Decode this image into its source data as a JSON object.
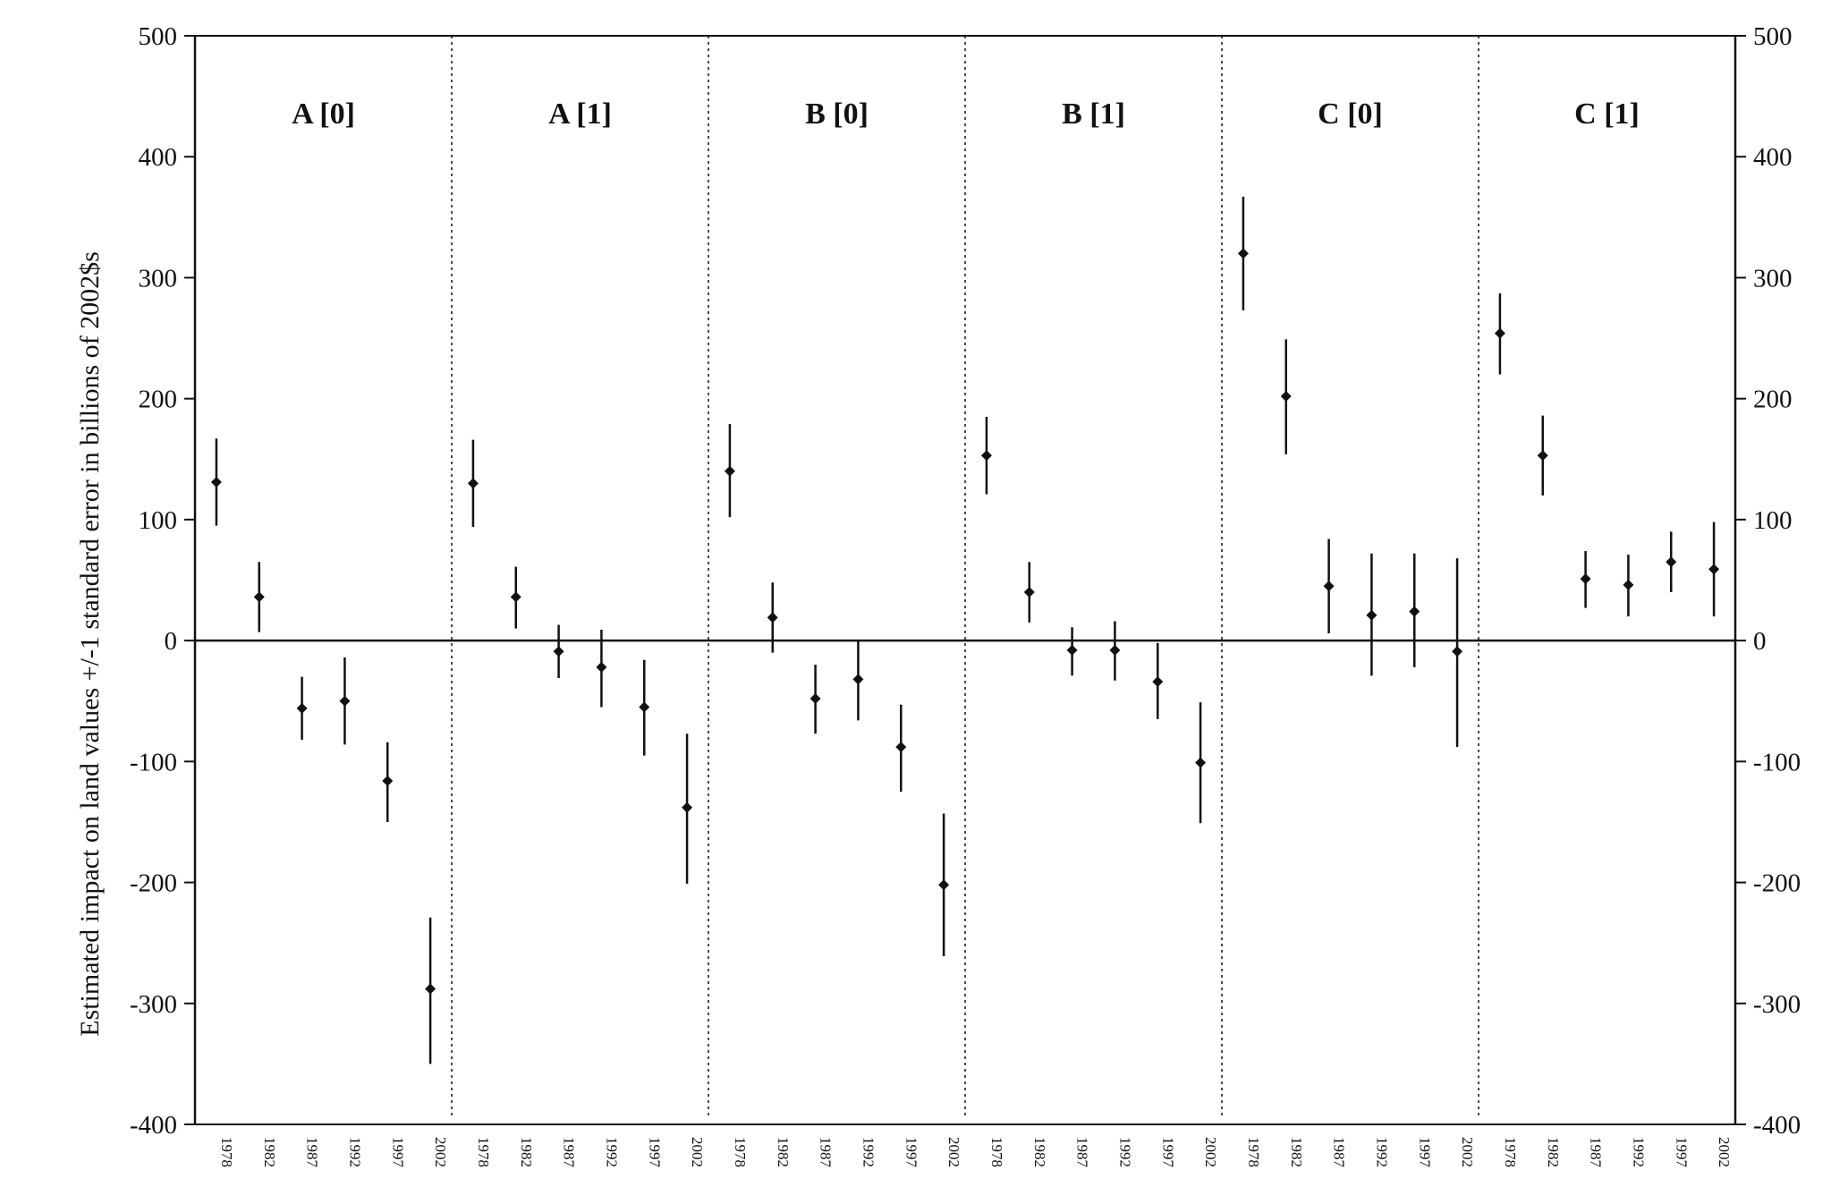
{
  "chart_data": {
    "type": "scatter",
    "ylabel": "Estimated impact on land values +/-1 standard error in billions of 2002$s",
    "ylim": [
      -400,
      500
    ],
    "yticks": [
      500,
      400,
      300,
      200,
      100,
      0,
      -100,
      -200,
      -300,
      -400
    ],
    "ytick_labels": [
      "500",
      "400",
      "300",
      "200",
      "100",
      "0",
      "-100",
      "-200",
      "-300",
      "-400"
    ],
    "years": [
      "1978",
      "1982",
      "1987",
      "1992",
      "1997",
      "2002"
    ],
    "grid": false,
    "error_bars": "+/-1 standard error",
    "panels": [
      {
        "label": "A [0]",
        "points": [
          {
            "year": "1978",
            "value": 131,
            "low": 95,
            "high": 167
          },
          {
            "year": "1982",
            "value": 36,
            "low": 7,
            "high": 65
          },
          {
            "year": "1987",
            "value": -56,
            "low": -82,
            "high": -30
          },
          {
            "year": "1992",
            "value": -50,
            "low": -86,
            "high": -14
          },
          {
            "year": "1997",
            "value": -116,
            "low": -150,
            "high": -84
          },
          {
            "year": "2002",
            "value": -288,
            "low": -350,
            "high": -229
          }
        ]
      },
      {
        "label": "A [1]",
        "points": [
          {
            "year": "1978",
            "value": 130,
            "low": 94,
            "high": 166
          },
          {
            "year": "1982",
            "value": 36,
            "low": 10,
            "high": 61
          },
          {
            "year": "1987",
            "value": -9,
            "low": -31,
            "high": 13
          },
          {
            "year": "1992",
            "value": -22,
            "low": -55,
            "high": 9
          },
          {
            "year": "1997",
            "value": -55,
            "low": -95,
            "high": -16
          },
          {
            "year": "2002",
            "value": -138,
            "low": -201,
            "high": -77
          }
        ]
      },
      {
        "label": "B [0]",
        "points": [
          {
            "year": "1978",
            "value": 140,
            "low": 102,
            "high": 179
          },
          {
            "year": "1982",
            "value": 19,
            "low": -10,
            "high": 48
          },
          {
            "year": "1987",
            "value": -48,
            "low": -77,
            "high": -20
          },
          {
            "year": "1992",
            "value": -32,
            "low": -66,
            "high": 0
          },
          {
            "year": "1997",
            "value": -88,
            "low": -125,
            "high": -53
          },
          {
            "year": "2002",
            "value": -202,
            "low": -261,
            "high": -143
          }
        ]
      },
      {
        "label": "B [1]",
        "points": [
          {
            "year": "1978",
            "value": 153,
            "low": 121,
            "high": 185
          },
          {
            "year": "1982",
            "value": 40,
            "low": 15,
            "high": 65
          },
          {
            "year": "1987",
            "value": -8,
            "low": -29,
            "high": 11
          },
          {
            "year": "1992",
            "value": -8,
            "low": -33,
            "high": 16
          },
          {
            "year": "1997",
            "value": -34,
            "low": -65,
            "high": -2
          },
          {
            "year": "2002",
            "value": -101,
            "low": -151,
            "high": -51
          }
        ]
      },
      {
        "label": "C [0]",
        "points": [
          {
            "year": "1978",
            "value": 320,
            "low": 273,
            "high": 367
          },
          {
            "year": "1982",
            "value": 202,
            "low": 154,
            "high": 249
          },
          {
            "year": "1987",
            "value": 45,
            "low": 6,
            "high": 84
          },
          {
            "year": "1992",
            "value": 21,
            "low": -29,
            "high": 72
          },
          {
            "year": "1997",
            "value": 24,
            "low": -22,
            "high": 72
          },
          {
            "year": "2002",
            "value": -9,
            "low": -88,
            "high": 68
          }
        ]
      },
      {
        "label": "C [1]",
        "points": [
          {
            "year": "1978",
            "value": 254,
            "low": 220,
            "high": 287
          },
          {
            "year": "1982",
            "value": 153,
            "low": 120,
            "high": 186
          },
          {
            "year": "1987",
            "value": 51,
            "low": 27,
            "high": 74
          },
          {
            "year": "1992",
            "value": 46,
            "low": 20,
            "high": 71
          },
          {
            "year": "1997",
            "value": 65,
            "low": 40,
            "high": 90
          },
          {
            "year": "2002",
            "value": 59,
            "low": 20,
            "high": 98
          }
        ]
      }
    ]
  }
}
